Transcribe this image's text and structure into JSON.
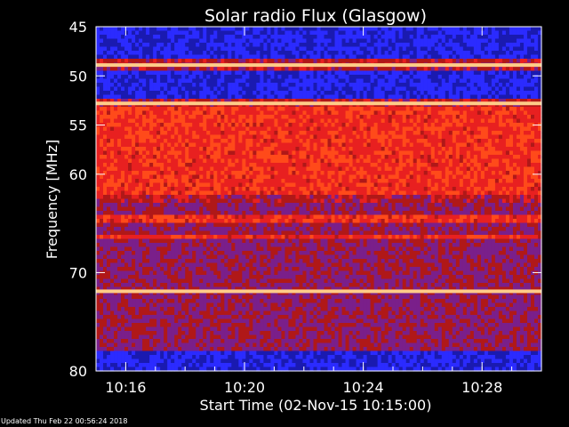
{
  "chart_data": {
    "type": "heatmap",
    "title": "Solar radio Flux (Glasgow)",
    "xlabel": "Start Time (02-Nov-15 10:15:00)",
    "ylabel": "Frequency [MHz]",
    "x_range": [
      "10:15:00",
      "10:30:00"
    ],
    "ylim": [
      45,
      80
    ],
    "x_ticks": [
      "10:16",
      "10:20",
      "10:24",
      "10:28"
    ],
    "y_ticks": [
      45,
      50,
      55,
      60,
      70,
      80
    ],
    "colormap": [
      "#1a1ab0",
      "#2b2bff",
      "#7a1f8a",
      "#b01818",
      "#e82020",
      "#ff4a1a",
      "#ffcc88"
    ],
    "bright_bands_mhz": [
      48.9,
      52.8,
      71.9
    ],
    "red_bands_mhz": [
      [
        53.0,
        62.0
      ],
      [
        64.0,
        64.8
      ],
      [
        66.0,
        66.5
      ]
    ],
    "blue_bands_mhz": [
      [
        45.2,
        48.4
      ],
      [
        49.3,
        52.4
      ],
      [
        78.0,
        80.0
      ]
    ]
  },
  "footer": "Updated Thu Feb 22 00:56:24 2018"
}
